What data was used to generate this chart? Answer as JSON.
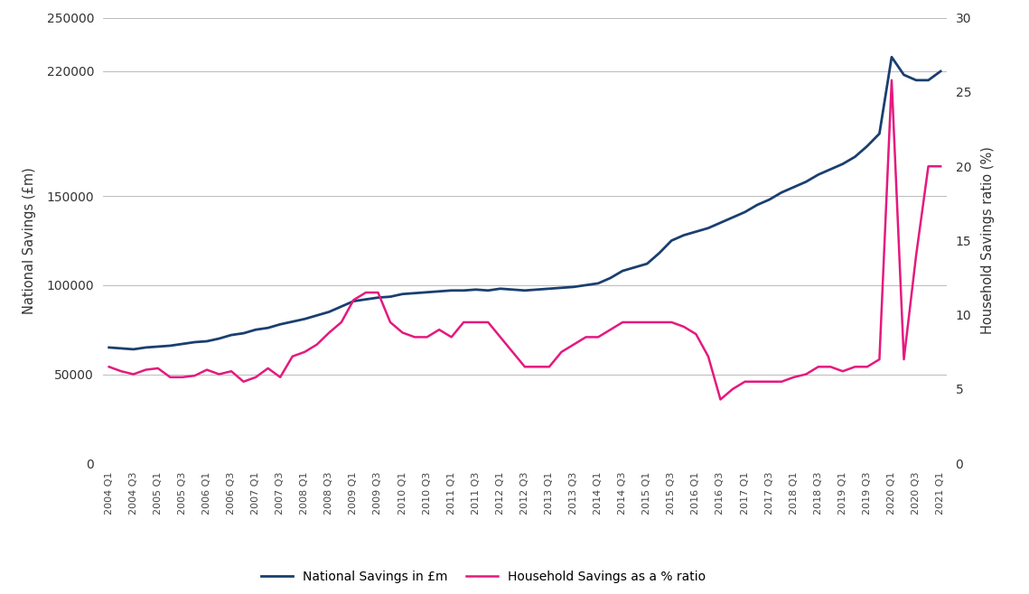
{
  "ylabel_left": "National Savings (£m)",
  "ylabel_right": "Household Savings ratio (%)",
  "left_ylim": [
    0,
    250000
  ],
  "right_ylim": [
    0,
    30
  ],
  "left_yticks": [
    0,
    50000,
    100000,
    150000,
    220000,
    250000
  ],
  "right_yticks": [
    0,
    5,
    10,
    15,
    20,
    25,
    30
  ],
  "national_savings_color": "#1a3f6f",
  "household_savings_color": "#e5197e",
  "legend_label_national": "National Savings in £m",
  "legend_label_household": "Household Savings as a % ratio",
  "background_color": "#ffffff",
  "grid_color": "#b0b0b0",
  "national_savings": [
    65000,
    64500,
    64000,
    65000,
    65500,
    66000,
    67000,
    68000,
    68500,
    70000,
    72000,
    73000,
    75000,
    76000,
    78000,
    79500,
    81000,
    83000,
    85000,
    88000,
    91000,
    92000,
    93000,
    93500,
    95000,
    95500,
    96000,
    96500,
    97000,
    97000,
    97500,
    97000,
    98000,
    97500,
    97000,
    97500,
    98000,
    98500,
    99000,
    100000,
    101000,
    104000,
    108000,
    110000,
    112000,
    118000,
    125000,
    128000,
    130000,
    132000,
    135000,
    138000,
    141000,
    145000,
    148000,
    152000,
    155000,
    158000,
    162000,
    165000,
    168000,
    172000,
    178000,
    185000,
    228000,
    218000,
    215000,
    215000,
    220000
  ],
  "household_savings": [
    6.5,
    6.2,
    6.0,
    6.3,
    6.4,
    5.8,
    5.8,
    5.9,
    6.3,
    6.0,
    6.2,
    5.5,
    5.8,
    6.4,
    5.8,
    7.2,
    7.5,
    8.0,
    8.8,
    9.5,
    11.0,
    11.5,
    11.5,
    9.5,
    8.8,
    8.5,
    8.5,
    9.0,
    8.5,
    9.5,
    9.5,
    9.5,
    8.5,
    7.5,
    6.5,
    6.5,
    6.5,
    7.5,
    8.0,
    8.5,
    8.5,
    9.0,
    9.5,
    9.5,
    9.5,
    9.5,
    9.5,
    9.2,
    8.7,
    7.2,
    4.3,
    5.0,
    5.5,
    5.5,
    5.5,
    5.5,
    5.8,
    6.0,
    6.5,
    6.5,
    6.2,
    6.5,
    6.5,
    7.0,
    25.8,
    7.0,
    14.0,
    20.0,
    20.0
  ]
}
